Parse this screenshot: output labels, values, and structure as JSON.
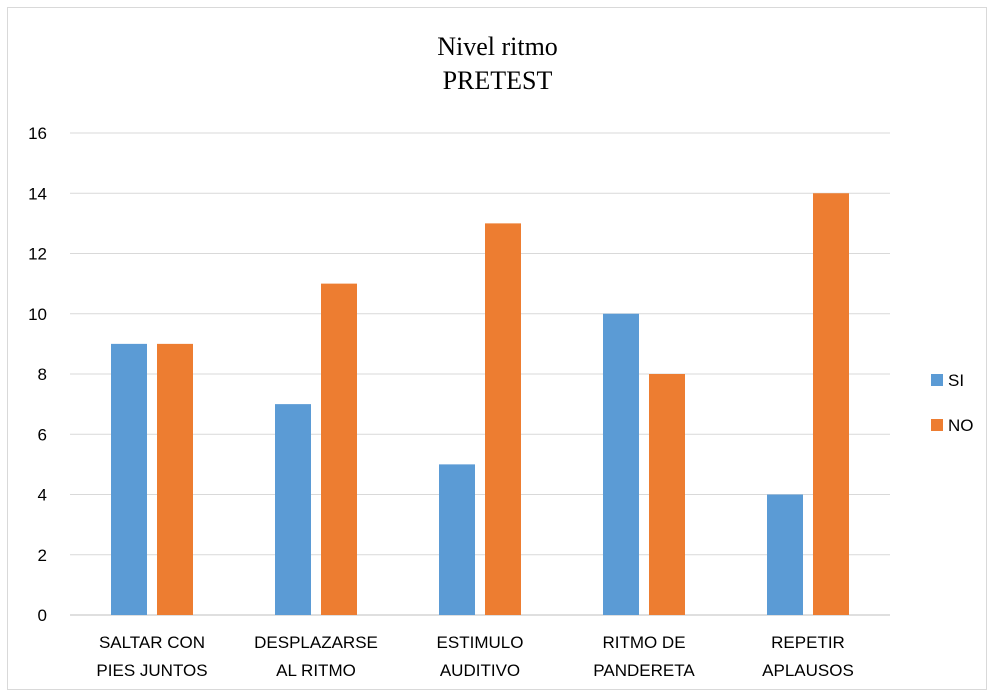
{
  "chart_data": {
    "type": "bar",
    "title": "Nivel ritmo",
    "subtitle": "PRETEST",
    "categories": [
      [
        "SALTAR CON",
        "PIES JUNTOS"
      ],
      [
        "DESPLAZARSE",
        "AL RITMO"
      ],
      [
        "ESTIMULO",
        "AUDITIVO"
      ],
      [
        "RITMO DE",
        "PANDERETA"
      ],
      [
        "REPETIR",
        "APLAUSOS"
      ]
    ],
    "series": [
      {
        "name": "SI",
        "values": [
          9,
          7,
          5,
          10,
          4
        ],
        "color": "#5b9bd5"
      },
      {
        "name": "NO",
        "values": [
          9,
          11,
          13,
          8,
          14
        ],
        "color": "#ed7d31"
      }
    ],
    "ylim": [
      0,
      16
    ],
    "yticks": [
      0,
      2,
      4,
      6,
      8,
      10,
      12,
      14,
      16
    ],
    "grid": true,
    "legend_position": "right"
  }
}
